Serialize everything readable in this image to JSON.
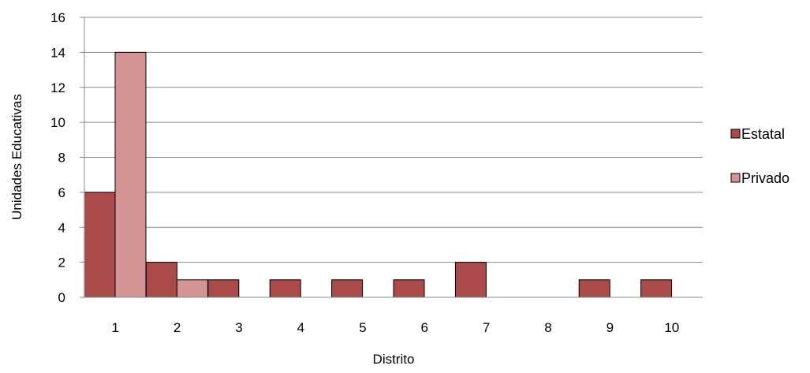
{
  "chart_data": {
    "type": "bar",
    "categories": [
      "1",
      "2",
      "3",
      "4",
      "5",
      "6",
      "7",
      "8",
      "9",
      "10"
    ],
    "series": [
      {
        "name": "Estatal",
        "values": [
          6,
          2,
          1,
          1,
          1,
          1,
          2,
          0,
          1,
          1
        ],
        "color": "#ab4a4a"
      },
      {
        "name": "Privado",
        "values": [
          14,
          1,
          0,
          0,
          0,
          0,
          0,
          0,
          0,
          0
        ],
        "color": "#d49494"
      }
    ],
    "xlabel": "Distrito",
    "ylabel": "Unidades Educativas",
    "ylim": [
      0,
      16
    ],
    "yticks": [
      "0",
      "2",
      "4",
      "6",
      "8",
      "10",
      "12",
      "14",
      "16"
    ],
    "grid": true,
    "legend_position": "right",
    "colors": {
      "gridline": "#888888",
      "bar_border": "#000000"
    }
  }
}
